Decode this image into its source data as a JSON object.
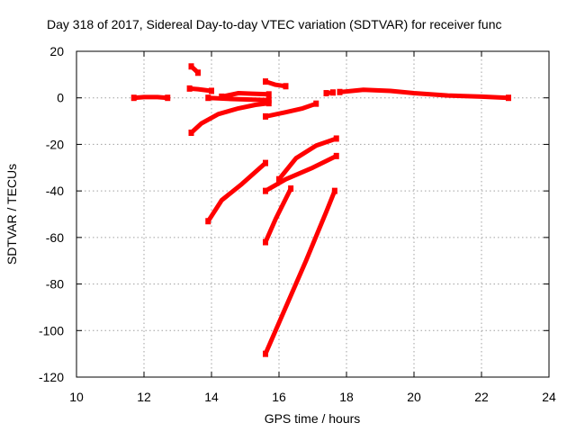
{
  "chart_data": {
    "type": "scatter",
    "title": "Day 318 of 2017, Sidereal Day-to-day VTEC variation (SDTVAR) for receiver func",
    "xlabel": "GPS time / hours",
    "ylabel": "SDTVAR / TECUs",
    "xlim": [
      10,
      24
    ],
    "ylim": [
      -120,
      20
    ],
    "xticks": [
      10,
      12,
      14,
      16,
      18,
      20,
      22,
      24
    ],
    "yticks": [
      -120,
      -100,
      -80,
      -60,
      -40,
      -20,
      0,
      20
    ],
    "grid": true,
    "series_color": "#ff0000",
    "segments": [
      {
        "name": "arc-near-zero-12h",
        "points": [
          [
            11.7,
            0
          ],
          [
            12.0,
            0.3
          ],
          [
            12.4,
            0.3
          ],
          [
            12.7,
            0
          ]
        ]
      },
      {
        "name": "arc-spike-13_5h",
        "points": [
          [
            13.4,
            13.5
          ],
          [
            13.5,
            12.2
          ],
          [
            13.6,
            10.8
          ]
        ]
      },
      {
        "name": "arc-small-13_5h",
        "points": [
          [
            13.35,
            4
          ],
          [
            13.6,
            3.7
          ],
          [
            14.0,
            3
          ]
        ]
      },
      {
        "name": "arc-near-zero-14_5h",
        "points": [
          [
            14.3,
            0.5
          ],
          [
            14.8,
            2
          ],
          [
            15.2,
            1.8
          ],
          [
            15.7,
            1.5
          ]
        ]
      },
      {
        "name": "arc-rising-14h",
        "points": [
          [
            13.4,
            -15
          ],
          [
            13.7,
            -11
          ],
          [
            14.2,
            -7
          ],
          [
            14.8,
            -4.5
          ],
          [
            15.3,
            -3
          ],
          [
            15.7,
            -2.3
          ]
        ]
      },
      {
        "name": "arc-near-zero-14_6h",
        "points": [
          [
            13.9,
            0
          ],
          [
            14.6,
            -0.5
          ],
          [
            15.7,
            -1
          ]
        ]
      },
      {
        "name": "arc-small-16h",
        "points": [
          [
            15.6,
            7
          ],
          [
            15.9,
            5.6
          ],
          [
            16.2,
            5
          ]
        ]
      },
      {
        "name": "arc-rising-16h",
        "points": [
          [
            15.6,
            -8
          ],
          [
            16.2,
            -6.2
          ],
          [
            16.7,
            -4.5
          ],
          [
            17.1,
            -2.5
          ]
        ]
      },
      {
        "name": "arc-short-17_5h",
        "points": [
          [
            17.4,
            2
          ],
          [
            17.6,
            2.3
          ]
        ]
      },
      {
        "name": "arc-long-zero-20h",
        "points": [
          [
            17.8,
            2.5
          ],
          [
            18.5,
            3.5
          ],
          [
            19.3,
            3
          ],
          [
            20.0,
            2
          ],
          [
            21.0,
            1
          ],
          [
            22.0,
            0.5
          ],
          [
            22.8,
            0
          ]
        ]
      },
      {
        "name": "arc-mid-14_8h",
        "points": [
          [
            13.9,
            -53
          ],
          [
            14.3,
            -44
          ],
          [
            14.9,
            -37
          ],
          [
            15.6,
            -28
          ]
        ]
      },
      {
        "name": "arc-mid-16_5h",
        "points": [
          [
            16.0,
            -35
          ],
          [
            16.5,
            -26
          ],
          [
            17.1,
            -20.5
          ],
          [
            17.7,
            -17.5
          ]
        ]
      },
      {
        "name": "arc-mid-16_6h",
        "points": [
          [
            15.6,
            -40
          ],
          [
            16.2,
            -35
          ],
          [
            17.0,
            -30
          ],
          [
            17.7,
            -25
          ]
        ]
      },
      {
        "name": "arc-steep-16h",
        "points": [
          [
            15.6,
            -62
          ],
          [
            15.9,
            -52
          ],
          [
            16.35,
            -39
          ]
        ]
      },
      {
        "name": "arc-steep-16_6h",
        "points": [
          [
            15.6,
            -110
          ],
          [
            16.2,
            -90
          ],
          [
            16.8,
            -70
          ],
          [
            17.4,
            -49
          ],
          [
            17.65,
            -40
          ]
        ]
      }
    ]
  }
}
